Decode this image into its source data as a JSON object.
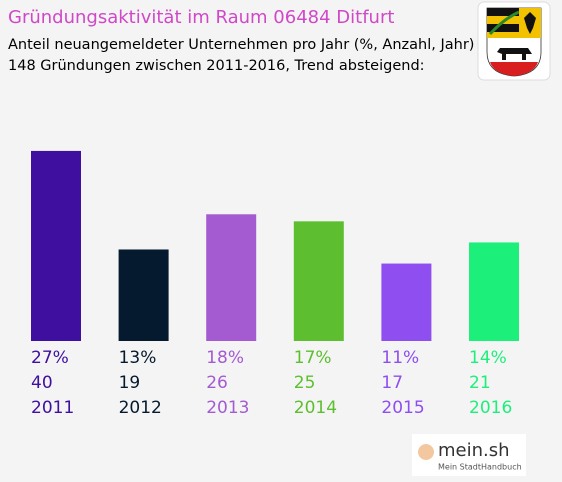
{
  "chart_data": {
    "type": "bar",
    "title": "Gründungsaktivität im Raum 06484 Ditfurt",
    "subtitle": [
      "Anteil neuangemeldeter Unternehmen pro Jahr (%, Anzahl, Jahr)",
      "148 Gründungen zwischen 2011-2016, Trend absteigend:"
    ],
    "categories": [
      "2011",
      "2012",
      "2013",
      "2014",
      "2015",
      "2016"
    ],
    "values": [
      27,
      13,
      18,
      17,
      11,
      14
    ],
    "value_labels": [
      "27%",
      "13%",
      "18%",
      "17%",
      "11%",
      "14%"
    ],
    "counts": [
      40,
      19,
      26,
      25,
      17,
      21
    ],
    "colors": [
      "#3f0fa0",
      "#051a2e",
      "#a45bd1",
      "#5dbf2f",
      "#8f4ef0",
      "#1df07a"
    ]
  },
  "branding": {
    "name": "mein.sh",
    "tagline": "Mein StadtHandbuch"
  }
}
